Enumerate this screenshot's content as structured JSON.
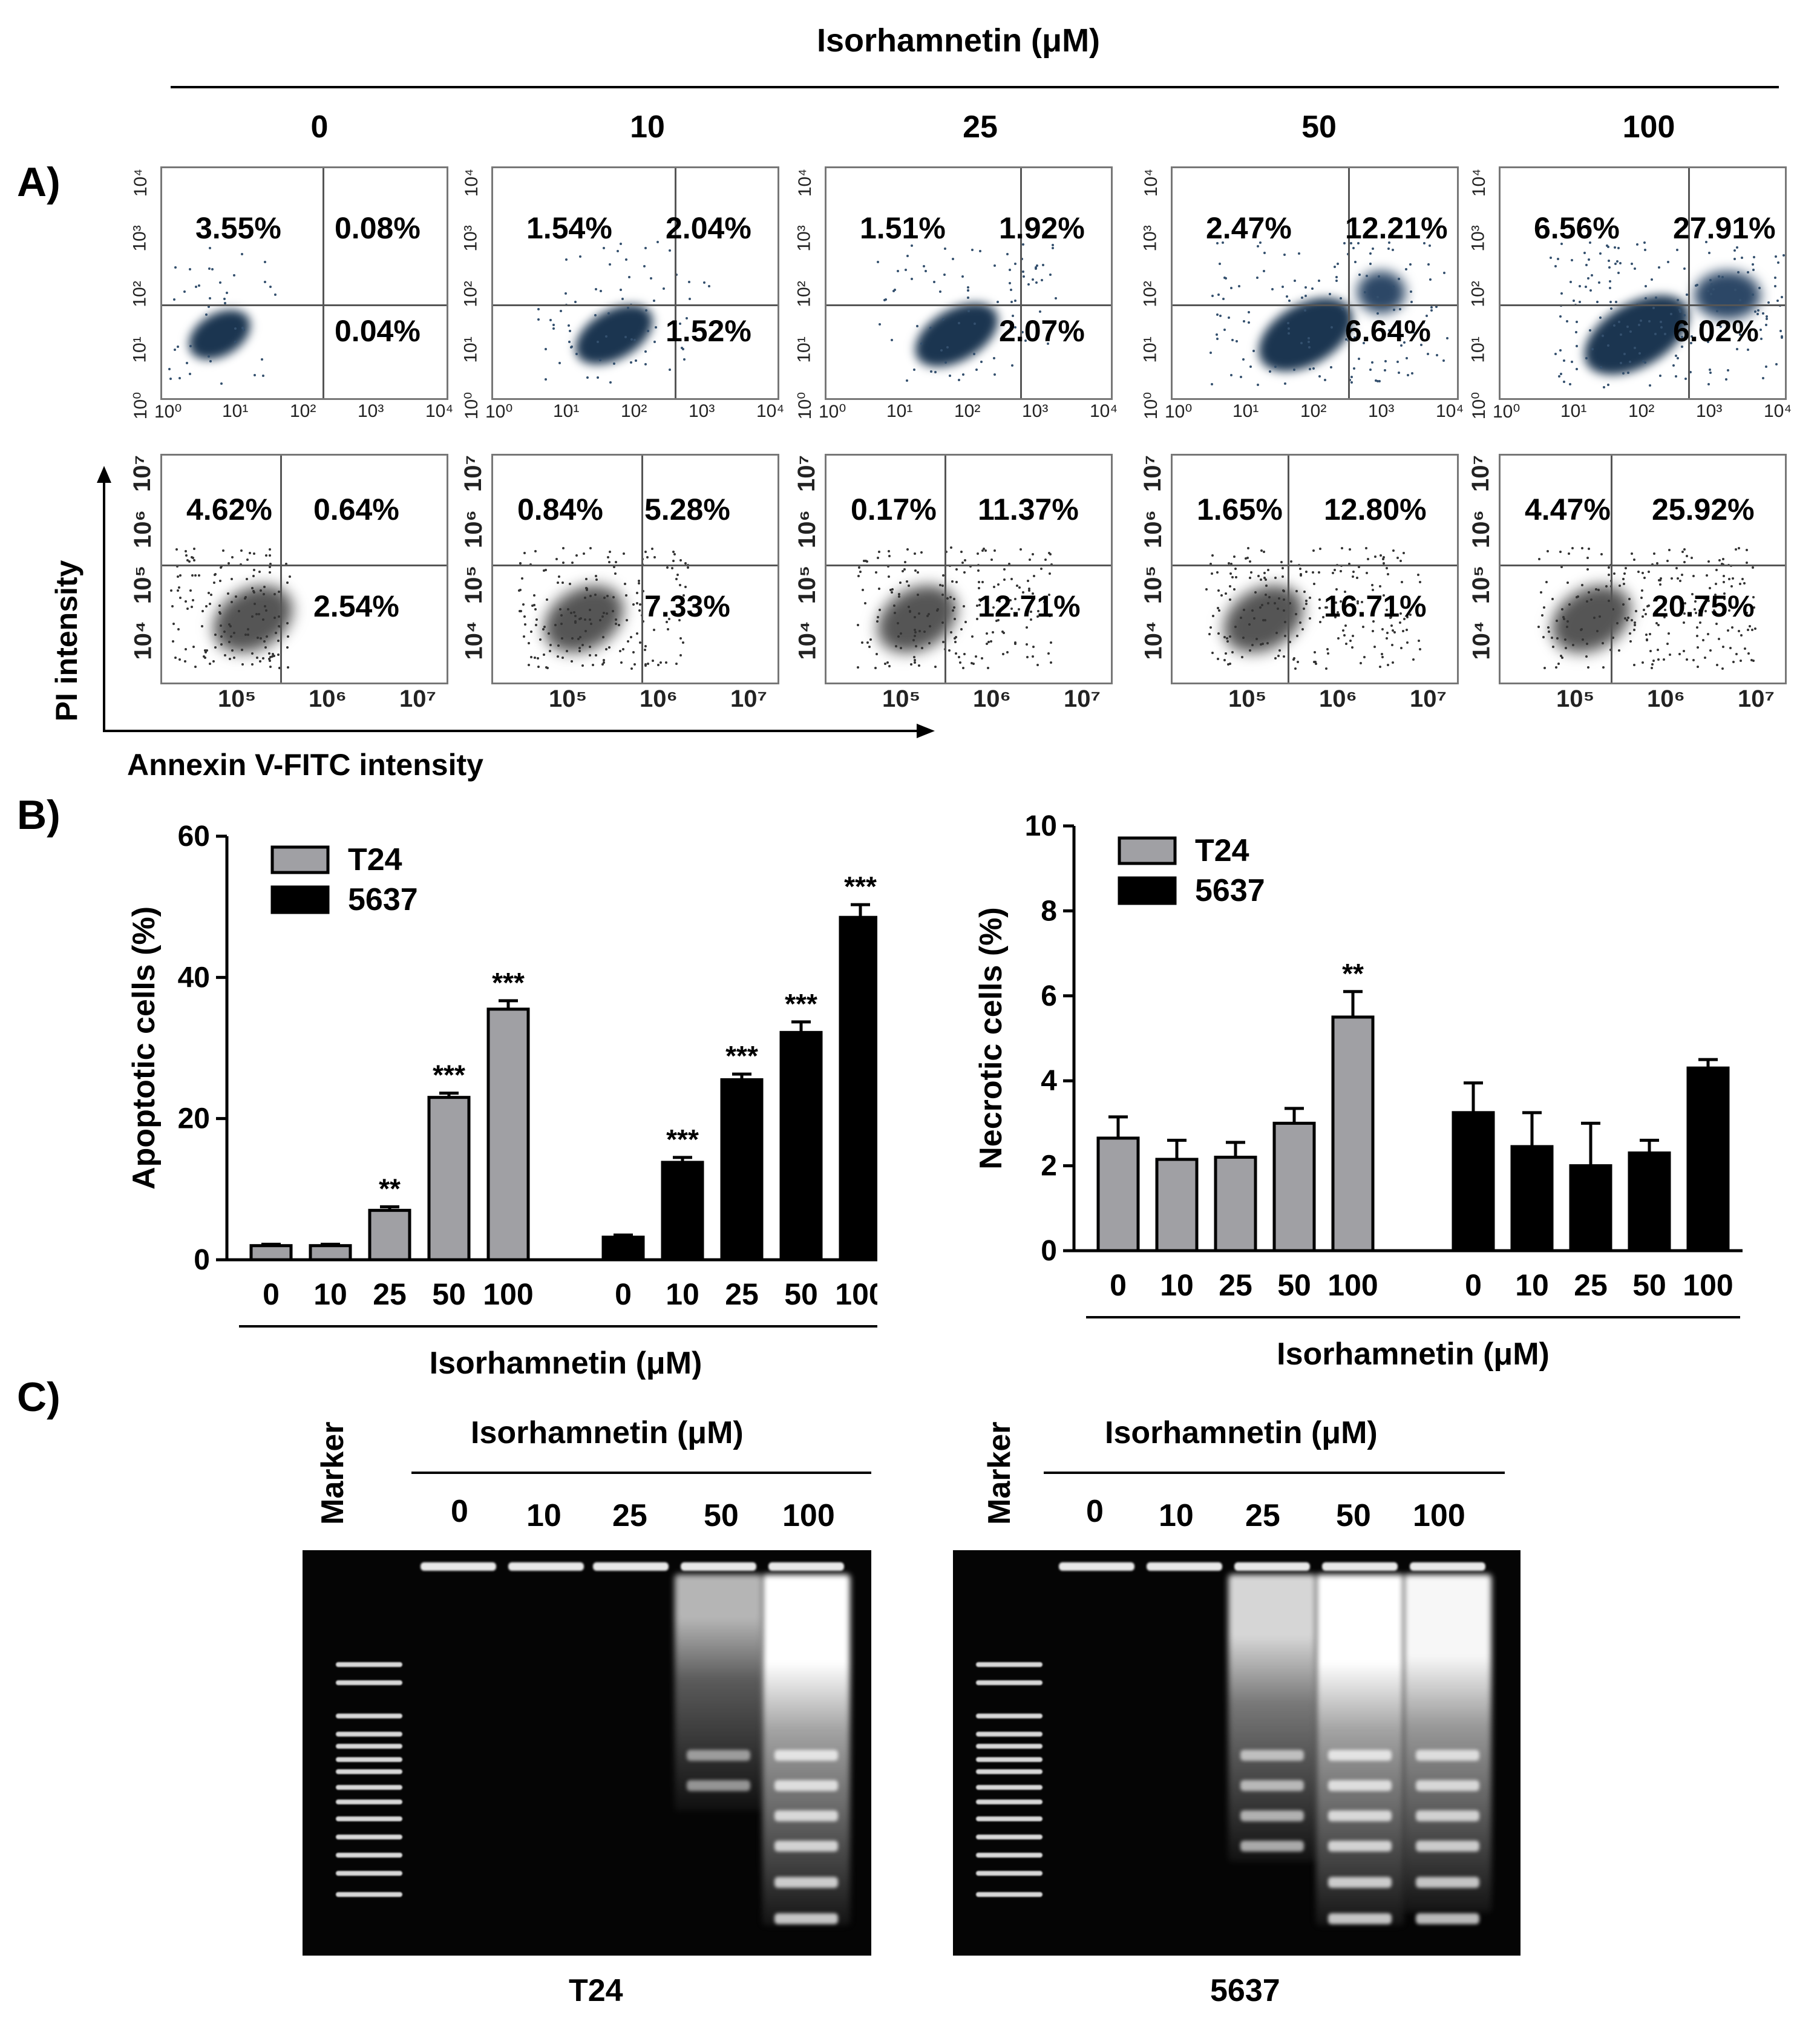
{
  "figure": {
    "top_header": "Isorhamnetin (μM)",
    "panel_labels": [
      "A)",
      "B)",
      "C)"
    ],
    "doses": [
      "0",
      "10",
      "25",
      "50",
      "100"
    ]
  },
  "panel_a": {
    "row1": {
      "plots": [
        {
          "ul": "3.55%",
          "ur": "0.08%",
          "lr": "0.04%"
        },
        {
          "ul": "1.54%",
          "ur": "2.04%",
          "lr": "1.52%"
        },
        {
          "ul": "1.51%",
          "ur": "1.92%",
          "lr": "2.07%"
        },
        {
          "ul": "2.47%",
          "ur": "12.21%",
          "lr": "6.64%"
        },
        {
          "ul": "6.56%",
          "ur": "27.91%",
          "lr": "6.02%"
        }
      ],
      "y_ticks": [
        "10⁴",
        "10³",
        "10²",
        "10¹",
        "10⁰"
      ],
      "x_ticks": [
        "10⁰",
        "10¹",
        "10²",
        "10³",
        "10⁴"
      ]
    },
    "row2": {
      "plots": [
        {
          "ul": "4.62%",
          "ur": "0.64%",
          "lr": "2.54%"
        },
        {
          "ul": "0.84%",
          "ur": "5.28%",
          "lr": "7.33%"
        },
        {
          "ul": "0.17%",
          "ur": "11.37%",
          "lr": "12.71%"
        },
        {
          "ul": "1.65%",
          "ur": "12.80%",
          "lr": "16.71%"
        },
        {
          "ul": "4.47%",
          "ur": "25.92%",
          "lr": "20.75%"
        }
      ],
      "y_ticks": [
        "10⁷",
        "10⁶",
        "10⁵",
        "10⁴"
      ],
      "x_ticks": [
        "10⁵",
        "10⁶",
        "10⁷"
      ]
    },
    "y_axis_label": "PI intensity",
    "x_axis_label": "Annexin V-FITC intensity"
  },
  "chart_data": [
    {
      "type": "bar",
      "ylabel": "Apoptotic cells (%)",
      "xlabel": "Isorhamnetin (μM)",
      "ylim": [
        0,
        60
      ],
      "yticks": [
        0,
        20,
        40,
        60
      ],
      "categories": [
        "0",
        "10",
        "25",
        "50",
        "100"
      ],
      "series": [
        {
          "name": "T24",
          "color": "#a0a0a4",
          "values": [
            2,
            2,
            7,
            23,
            35.5
          ],
          "errors": [
            0.2,
            0.2,
            0.5,
            0.6,
            1.2
          ],
          "significance": [
            "",
            "",
            "**",
            "***",
            "***"
          ]
        },
        {
          "name": "5637",
          "color": "#000000",
          "values": [
            3.2,
            13.8,
            25.5,
            32.2,
            48.5
          ],
          "errors": [
            0.3,
            0.7,
            0.8,
            1.5,
            1.8
          ],
          "significance": [
            "",
            "***",
            "***",
            "***",
            "***"
          ]
        }
      ]
    },
    {
      "type": "bar",
      "ylabel": "Necrotic cells (%)",
      "xlabel": "Isorhamnetin (μM)",
      "ylim": [
        0,
        10
      ],
      "yticks": [
        0,
        2,
        4,
        6,
        8,
        10
      ],
      "categories": [
        "0",
        "10",
        "25",
        "50",
        "100"
      ],
      "series": [
        {
          "name": "T24",
          "color": "#a0a0a4",
          "values": [
            2.65,
            2.15,
            2.2,
            3.0,
            5.5
          ],
          "errors": [
            0.5,
            0.45,
            0.35,
            0.35,
            0.6
          ],
          "significance": [
            "",
            "",
            "",
            "",
            "**"
          ]
        },
        {
          "name": "5637",
          "color": "#000000",
          "values": [
            3.25,
            2.45,
            2.0,
            2.3,
            4.3
          ],
          "errors": [
            0.7,
            0.8,
            1.0,
            0.3,
            0.2
          ],
          "significance": [
            "",
            "",
            "",
            "",
            ""
          ]
        }
      ]
    }
  ],
  "panel_c": {
    "marker_label": "Marker",
    "header": "Isorhamnetin (μM)",
    "gels": [
      {
        "cell_line": "T24"
      },
      {
        "cell_line": "5637"
      }
    ]
  }
}
